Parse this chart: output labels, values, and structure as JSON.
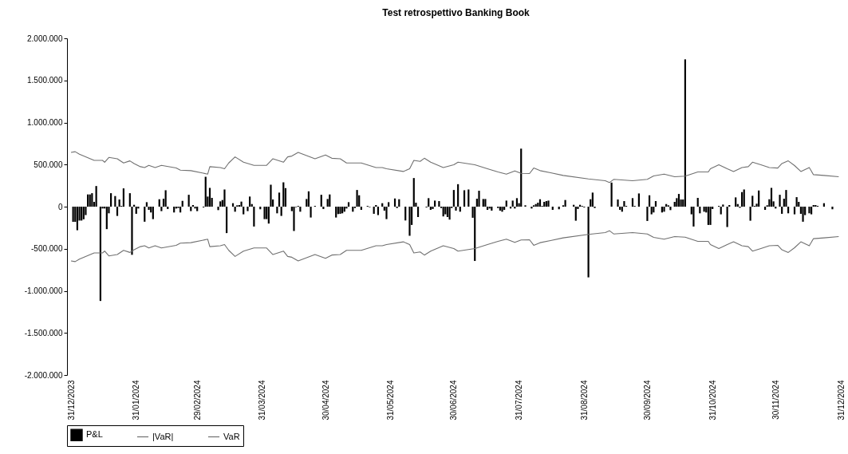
{
  "chart_data": {
    "type": "bar",
    "title": "Test retrospettivo Banking Book",
    "legend": "bottom left",
    "xlim": [
      "2023-12-31",
      "2024-12-31"
    ],
    "xticks": [
      {
        "value": "2023-12-31",
        "label": "31/12/2023"
      },
      {
        "value": "2024-01-31",
        "label": "31/01/2024"
      },
      {
        "value": "2024-02-29",
        "label": "29/02/2024"
      },
      {
        "value": "2024-03-31",
        "label": "31/03/2024"
      },
      {
        "value": "2024-04-30",
        "label": "30/04/2024"
      },
      {
        "value": "2024-05-31",
        "label": "31/05/2024"
      },
      {
        "value": "2024-06-30",
        "label": "30/06/2024"
      },
      {
        "value": "2024-07-31",
        "label": "31/07/2024"
      },
      {
        "value": "2024-08-31",
        "label": "31/08/2024"
      },
      {
        "value": "2024-09-30",
        "label": "30/09/2024"
      },
      {
        "value": "2024-10-31",
        "label": "31/10/2024"
      },
      {
        "value": "2024-11-30",
        "label": "30/11/2024"
      },
      {
        "value": "2024-12-31",
        "label": "31/12/2024"
      }
    ],
    "ylim": [
      -2000000,
      2000000
    ],
    "yticks": [
      {
        "value": -2000000,
        "label": "-2.000.000"
      },
      {
        "value": -1500000,
        "label": "-1.500.000"
      },
      {
        "value": -1000000,
        "label": "-1.000.000"
      },
      {
        "value": -500000,
        "label": "-500.000"
      },
      {
        "value": 0,
        "label": "0"
      },
      {
        "value": 500000,
        "label": "500.000"
      },
      {
        "value": 1000000,
        "label": "1.000.000"
      },
      {
        "value": 1500000,
        "label": "1.500.000"
      },
      {
        "value": 2000000,
        "label": "2.000.000"
      }
    ],
    "series": [
      {
        "name": "P&L",
        "color": "#000000",
        "x": [
          "2024-01-01",
          "2024-01-02",
          "2024-01-03",
          "2024-01-04",
          "2024-01-05",
          "2024-01-06",
          "2024-01-07",
          "2024-01-08",
          "2024-01-09",
          "2024-01-10",
          "2024-01-11",
          "2024-01-12",
          "2024-01-14",
          "2024-01-15",
          "2024-01-16",
          "2024-01-17",
          "2024-01-18",
          "2024-01-19",
          "2024-01-21",
          "2024-01-22",
          "2024-01-23",
          "2024-01-24",
          "2024-01-25",
          "2024-01-28",
          "2024-01-29",
          "2024-01-30",
          "2024-01-31",
          "2024-02-01",
          "2024-02-04",
          "2024-02-05",
          "2024-02-06",
          "2024-02-07",
          "2024-02-08",
          "2024-02-11",
          "2024-02-12",
          "2024-02-13",
          "2024-02-14",
          "2024-02-15",
          "2024-02-18",
          "2024-02-19",
          "2024-02-20",
          "2024-02-21",
          "2024-02-22",
          "2024-02-25",
          "2024-02-26",
          "2024-02-27",
          "2024-02-28",
          "2024-02-29",
          "2024-03-03",
          "2024-03-04",
          "2024-03-05",
          "2024-03-06",
          "2024-03-07",
          "2024-03-10",
          "2024-03-11",
          "2024-03-12",
          "2024-03-13",
          "2024-03-14",
          "2024-03-17",
          "2024-03-18",
          "2024-03-19",
          "2024-03-20",
          "2024-03-21",
          "2024-03-22",
          "2024-03-24",
          "2024-03-25",
          "2024-03-26",
          "2024-03-27",
          "2024-03-30",
          "2024-04-01",
          "2024-04-02",
          "2024-04-03",
          "2024-04-04",
          "2024-04-05",
          "2024-04-07",
          "2024-04-08",
          "2024-04-09",
          "2024-04-10",
          "2024-04-11",
          "2024-04-14",
          "2024-04-15",
          "2024-04-16",
          "2024-04-17",
          "2024-04-18",
          "2024-04-21",
          "2024-04-22",
          "2024-04-23",
          "2024-04-25",
          "2024-04-28",
          "2024-04-29",
          "2024-05-01",
          "2024-05-02",
          "2024-05-05",
          "2024-05-06",
          "2024-05-07",
          "2024-05-08",
          "2024-05-09",
          "2024-05-10",
          "2024-05-11",
          "2024-05-13",
          "2024-05-14",
          "2024-05-15",
          "2024-05-16",
          "2024-05-17",
          "2024-05-20",
          "2024-05-21",
          "2024-05-23",
          "2024-05-24",
          "2024-05-25",
          "2024-05-27",
          "2024-05-28",
          "2024-05-29",
          "2024-05-30",
          "2024-06-02",
          "2024-06-03",
          "2024-06-04",
          "2024-06-07",
          "2024-06-09",
          "2024-06-10",
          "2024-06-11",
          "2024-06-12",
          "2024-06-13",
          "2024-06-17",
          "2024-06-18",
          "2024-06-19",
          "2024-06-20",
          "2024-06-21",
          "2024-06-23",
          "2024-06-24",
          "2024-06-25",
          "2024-06-26",
          "2024-06-27",
          "2024-06-28",
          "2024-06-29",
          "2024-06-30",
          "2024-07-01",
          "2024-07-02",
          "2024-07-03",
          "2024-07-05",
          "2024-07-07",
          "2024-07-09",
          "2024-07-10",
          "2024-07-11",
          "2024-07-12",
          "2024-07-14",
          "2024-07-15",
          "2024-07-16",
          "2024-07-17",
          "2024-07-18",
          "2024-07-21",
          "2024-07-22",
          "2024-07-23",
          "2024-07-24",
          "2024-07-25",
          "2024-07-27",
          "2024-07-28",
          "2024-07-29",
          "2024-07-30",
          "2024-07-31",
          "2024-08-01",
          "2024-08-03",
          "2024-08-06",
          "2024-08-07",
          "2024-08-08",
          "2024-08-09",
          "2024-08-10",
          "2024-08-11",
          "2024-08-12",
          "2024-08-13",
          "2024-08-14",
          "2024-08-16",
          "2024-08-19",
          "2024-08-21",
          "2024-08-22",
          "2024-08-23",
          "2024-08-26",
          "2024-08-27",
          "2024-08-28",
          "2024-08-29",
          "2024-08-30",
          "2024-08-31",
          "2024-09-02",
          "2024-09-03",
          "2024-09-04",
          "2024-09-05",
          "2024-09-13",
          "2024-09-16",
          "2024-09-17",
          "2024-09-18",
          "2024-09-19",
          "2024-09-20",
          "2024-09-23",
          "2024-09-24",
          "2024-09-26",
          "2024-09-30",
          "2024-10-01",
          "2024-10-02",
          "2024-10-03",
          "2024-10-04",
          "2024-10-07",
          "2024-10-08",
          "2024-10-09",
          "2024-10-10",
          "2024-10-11",
          "2024-10-13",
          "2024-10-14",
          "2024-10-15",
          "2024-10-16",
          "2024-10-17",
          "2024-10-18",
          "2024-10-21",
          "2024-10-22",
          "2024-10-24",
          "2024-10-25",
          "2024-10-27",
          "2024-10-28",
          "2024-10-29",
          "2024-10-30",
          "2024-10-31",
          "2024-11-03",
          "2024-11-04",
          "2024-11-05",
          "2024-11-07",
          "2024-11-08",
          "2024-11-11",
          "2024-11-12",
          "2024-11-13",
          "2024-11-14",
          "2024-11-15",
          "2024-11-18",
          "2024-11-19",
          "2024-11-20",
          "2024-11-21",
          "2024-11-22",
          "2024-11-25",
          "2024-11-26",
          "2024-11-27",
          "2024-11-28",
          "2024-11-29",
          "2024-11-30",
          "2024-12-02",
          "2024-12-03",
          "2024-12-04",
          "2024-12-05",
          "2024-12-06",
          "2024-12-09",
          "2024-12-10",
          "2024-12-11",
          "2024-12-12",
          "2024-12-13",
          "2024-12-14",
          "2024-12-16",
          "2024-12-17",
          "2024-12-18",
          "2024-12-19",
          "2024-12-20",
          "2024-12-23",
          "2024-12-27"
        ],
        "values": [
          -180000,
          -180000,
          -280000,
          -165000,
          -165000,
          -150000,
          -100000,
          145000,
          145000,
          160000,
          57000,
          245000,
          -1120000,
          -22000,
          -22000,
          -267000,
          -79000,
          160000,
          126000,
          -110000,
          85000,
          9000,
          217000,
          160000,
          -572000,
          22000,
          -85000,
          -22000,
          -179000,
          53000,
          -38000,
          -69000,
          -148000,
          88000,
          -53000,
          94000,
          195000,
          -28000,
          -69000,
          -22000,
          -16000,
          -69000,
          69000,
          141000,
          -53000,
          19000,
          -22000,
          -53000,
          -9000,
          355000,
          120000,
          223000,
          104000,
          -41000,
          63000,
          79000,
          204000,
          -314000,
          41000,
          -60000,
          16000,
          19000,
          60000,
          -91000,
          -53000,
          120000,
          31000,
          -236000,
          -31000,
          -148000,
          -148000,
          -201000,
          261000,
          85000,
          -79000,
          167000,
          -110000,
          289000,
          220000,
          -53000,
          -289000,
          -6000,
          9000,
          -60000,
          91000,
          182000,
          -129000,
          9000,
          141000,
          -28000,
          91000,
          145000,
          -129000,
          -88000,
          -85000,
          -79000,
          -60000,
          -22000,
          53000,
          -60000,
          -16000,
          198000,
          135000,
          -38000,
          9000,
          -6000,
          -85000,
          19000,
          -100000,
          41000,
          -47000,
          -148000,
          53000,
          97000,
          -16000,
          88000,
          -164000,
          -346000,
          -217000,
          340000,
          47000,
          -123000,
          -9000,
          101000,
          -38000,
          -28000,
          72000,
          66000,
          -16000,
          -116000,
          -91000,
          -123000,
          -154000,
          -16000,
          198000,
          -47000,
          267000,
          -60000,
          195000,
          204000,
          -132000,
          -645000,
          94000,
          189000,
          91000,
          91000,
          -38000,
          -22000,
          -47000,
          -16000,
          -47000,
          -60000,
          -38000,
          72000,
          -22000,
          72000,
          -22000,
          101000,
          41000,
          689000,
          16000,
          -22000,
          16000,
          31000,
          47000,
          88000,
          9000,
          57000,
          66000,
          72000,
          -38000,
          -31000,
          16000,
          79000,
          null,
          22000,
          -167000,
          -28000,
          22000,
          9000,
          -9000,
          -840000,
          88000,
          167000,
          -16000,
          286000,
          85000,
          -38000,
          -60000,
          66000,
          9000,
          101000,
          9000,
          157000,
          -170000,
          135000,
          -91000,
          -69000,
          66000,
          -69000,
          -60000,
          31000,
          16000,
          -41000,
          57000,
          101000,
          151000,
          85000,
          85000,
          1750000,
          -91000,
          -236000,
          104000,
          -79000,
          -60000,
          -69000,
          -217000,
          -217000,
          -28000,
          9000,
          -91000,
          25000,
          -242000,
          19000,
          110000,
          31000,
          -13000,
          173000,
          204000,
          -167000,
          129000,
          9000,
          35000,
          192000,
          -38000,
          16000,
          88000,
          223000,
          63000,
          -22000,
          141000,
          -85000,
          94000,
          198000,
          -79000,
          -91000,
          113000,
          57000,
          -85000,
          -179000,
          -100000,
          -79000,
          -91000,
          19000,
          19000,
          9000,
          41000,
          -31000
        ]
      },
      {
        "name": "|VaR|",
        "type": "line",
        "color": "#707070",
        "x": [
          "2023-12-31",
          "2024-01-02",
          "2024-01-04",
          "2024-01-11",
          "2024-01-15",
          "2024-01-16",
          "2024-01-18",
          "2024-01-22",
          "2024-01-25",
          "2024-01-28",
          "2024-01-30",
          "2024-02-02",
          "2024-02-04",
          "2024-02-06",
          "2024-02-09",
          "2024-02-12",
          "2024-02-19",
          "2024-02-21",
          "2024-02-26",
          "2024-03-05",
          "2024-03-06",
          "2024-03-11",
          "2024-03-13",
          "2024-03-15",
          "2024-03-18",
          "2024-03-22",
          "2024-03-27",
          "2024-04-02",
          "2024-04-05",
          "2024-04-10",
          "2024-04-12",
          "2024-04-14",
          "2024-04-17",
          "2024-04-21",
          "2024-04-25",
          "2024-04-30",
          "2024-05-03",
          "2024-05-07",
          "2024-05-10",
          "2024-05-17",
          "2024-05-24",
          "2024-05-27",
          "2024-05-29",
          "2024-06-06",
          "2024-06-09",
          "2024-06-11",
          "2024-06-14",
          "2024-06-16",
          "2024-06-19",
          "2024-06-25",
          "2024-06-30",
          "2024-07-02",
          "2024-07-10",
          "2024-07-16",
          "2024-07-21",
          "2024-07-25",
          "2024-07-29",
          "2024-08-01",
          "2024-08-05",
          "2024-08-07",
          "2024-08-10",
          "2024-08-15",
          "2024-08-21",
          "2024-09-02",
          "2024-09-10",
          "2024-09-12",
          "2024-09-14",
          "2024-09-23",
          "2024-09-30",
          "2024-10-03",
          "2024-10-08",
          "2024-10-13",
          "2024-10-18",
          "2024-10-24",
          "2024-10-29",
          "2024-10-30",
          "2024-11-03",
          "2024-11-07",
          "2024-11-10",
          "2024-11-14",
          "2024-11-17",
          "2024-11-19",
          "2024-11-23",
          "2024-11-27",
          "2024-12-01",
          "2024-12-03",
          "2024-12-06",
          "2024-12-09",
          "2024-12-12",
          "2024-12-16",
          "2024-12-18",
          "2024-12-23",
          "2024-12-30"
        ],
        "values": [
          644000,
          653000,
          623000,
          550000,
          550000,
          528000,
          585000,
          569000,
          519000,
          544000,
          512000,
          475000,
          465000,
          491000,
          465000,
          491000,
          459000,
          434000,
          428000,
          387000,
          475000,
          465000,
          450000,
          519000,
          591000,
          528000,
          491000,
          491000,
          569000,
          528000,
          591000,
          601000,
          644000,
          607000,
          569000,
          613000,
          575000,
          569000,
          519000,
          519000,
          465000,
          465000,
          450000,
          418000,
          450000,
          550000,
          538000,
          575000,
          528000,
          465000,
          497000,
          528000,
          497000,
          450000,
          412000,
          387000,
          425000,
          396000,
          393000,
          459000,
          428000,
          403000,
          371000,
          330000,
          308000,
          286000,
          324000,
          308000,
          324000,
          365000,
          387000,
          355000,
          362000,
          412000,
          412000,
          450000,
          497000,
          450000,
          418000,
          465000,
          475000,
          528000,
          497000,
          465000,
          459000,
          512000,
          544000,
          488000,
          418000,
          465000,
          380000,
          371000,
          355000
        ]
      },
      {
        "name": "VaR",
        "type": "line",
        "color": "#707070",
        "x": [
          "2023-12-31",
          "2024-01-02",
          "2024-01-04",
          "2024-01-11",
          "2024-01-15",
          "2024-01-16",
          "2024-01-18",
          "2024-01-22",
          "2024-01-25",
          "2024-01-28",
          "2024-01-30",
          "2024-02-02",
          "2024-02-04",
          "2024-02-06",
          "2024-02-09",
          "2024-02-12",
          "2024-02-19",
          "2024-02-21",
          "2024-02-26",
          "2024-03-05",
          "2024-03-06",
          "2024-03-11",
          "2024-03-13",
          "2024-03-15",
          "2024-03-18",
          "2024-03-22",
          "2024-03-27",
          "2024-04-02",
          "2024-04-05",
          "2024-04-10",
          "2024-04-12",
          "2024-04-14",
          "2024-04-17",
          "2024-04-21",
          "2024-04-25",
          "2024-04-30",
          "2024-05-03",
          "2024-05-07",
          "2024-05-10",
          "2024-05-17",
          "2024-05-24",
          "2024-05-27",
          "2024-05-29",
          "2024-06-06",
          "2024-06-09",
          "2024-06-11",
          "2024-06-14",
          "2024-06-16",
          "2024-06-19",
          "2024-06-25",
          "2024-06-30",
          "2024-07-02",
          "2024-07-10",
          "2024-07-16",
          "2024-07-21",
          "2024-07-25",
          "2024-07-29",
          "2024-08-01",
          "2024-08-05",
          "2024-08-07",
          "2024-08-10",
          "2024-08-15",
          "2024-08-21",
          "2024-09-02",
          "2024-09-10",
          "2024-09-12",
          "2024-09-14",
          "2024-09-23",
          "2024-09-30",
          "2024-10-03",
          "2024-10-08",
          "2024-10-13",
          "2024-10-18",
          "2024-10-24",
          "2024-10-29",
          "2024-10-30",
          "2024-11-03",
          "2024-11-07",
          "2024-11-10",
          "2024-11-14",
          "2024-11-17",
          "2024-11-19",
          "2024-11-23",
          "2024-11-27",
          "2024-12-01",
          "2024-12-03",
          "2024-12-06",
          "2024-12-09",
          "2024-12-12",
          "2024-12-16",
          "2024-12-18",
          "2024-12-23",
          "2024-12-30"
        ],
        "values": [
          -644000,
          -653000,
          -623000,
          -550000,
          -550000,
          -528000,
          -585000,
          -569000,
          -519000,
          -544000,
          -512000,
          -475000,
          -465000,
          -491000,
          -465000,
          -491000,
          -459000,
          -434000,
          -428000,
          -387000,
          -475000,
          -465000,
          -450000,
          -519000,
          -591000,
          -528000,
          -491000,
          -491000,
          -569000,
          -528000,
          -591000,
          -601000,
          -644000,
          -607000,
          -569000,
          -613000,
          -575000,
          -569000,
          -519000,
          -519000,
          -465000,
          -465000,
          -450000,
          -418000,
          -450000,
          -550000,
          -538000,
          -575000,
          -528000,
          -465000,
          -497000,
          -528000,
          -497000,
          -450000,
          -412000,
          -387000,
          -425000,
          -396000,
          -393000,
          -459000,
          -428000,
          -403000,
          -371000,
          -330000,
          -308000,
          -286000,
          -324000,
          -308000,
          -324000,
          -365000,
          -387000,
          -355000,
          -362000,
          -412000,
          -412000,
          -450000,
          -497000,
          -450000,
          -418000,
          -465000,
          -475000,
          -528000,
          -497000,
          -465000,
          -459000,
          -512000,
          -544000,
          -488000,
          -418000,
          -465000,
          -380000,
          -371000,
          -355000
        ]
      }
    ]
  }
}
